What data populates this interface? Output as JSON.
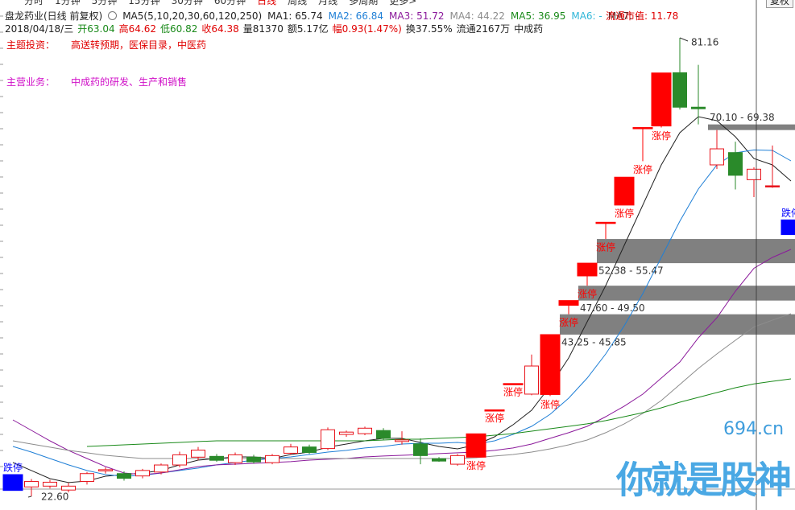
{
  "toolbar": {
    "tabs": [
      "分时",
      "1分钟",
      "5分钟",
      "15分钟",
      "30分钟",
      "60分钟",
      "日线",
      "周线",
      "月线",
      "多周期",
      "更多>"
    ],
    "active": "日线",
    "right": "复权"
  },
  "header": {
    "title": "盘龙药业(日线 前复权)",
    "ma_params": "MA5(5,10,20,30,60,120,250)",
    "ma_extra": [
      {
        "name": "MA6:",
        "value": "-",
        "color": "#2fb6d8"
      },
      {
        "name": "MA7:",
        "value": "-",
        "color": "#333333"
      }
    ],
    "market_cap": "流通市值: 11.78",
    "date": "2018/04/18/三",
    "ohlc_labels": [
      {
        "text": "开",
        "color": "#1a8a1a"
      },
      {
        "text": "高",
        "color": "#e00000"
      },
      {
        "text": "低",
        "color": "#1a8a1a"
      },
      {
        "text": "收",
        "color": "#e00000"
      }
    ],
    "extras": [
      {
        "text": "量81370",
        "color": "#222222"
      },
      {
        "text": "额5.17亿",
        "color": "#222222"
      },
      {
        "text": "幅0.93(1.47%)",
        "color": "#e00000"
      },
      {
        "text": "换37.55%",
        "color": "#222222"
      },
      {
        "text": "流通2167万",
        "color": "#222222"
      },
      {
        "text": "中成药",
        "color": "#222222"
      }
    ],
    "theme_label": "主题投资：",
    "theme": "高送转预期，医保目录，中医药",
    "business_label": "主营业务：",
    "business": "中成药的研发、生产和销售"
  },
  "chart_data": {
    "type": "candlestick",
    "open": [
      25.37,
      23.8,
      23.9,
      23.4,
      24.5,
      25.9,
      25.5,
      25.2,
      25.7,
      26.6,
      27.6,
      27.7,
      26.9,
      27.6,
      26.9,
      28.1,
      28.9,
      28.7,
      30.5,
      30.6,
      31.0,
      29.6,
      29.3,
      27.4,
      26.7,
      27.6,
      33.64,
      37.0,
      35.65,
      35.6,
      47.0,
      50.75,
      57.6,
      59.8,
      69.7,
      69.9,
      76.7,
      72.3,
      64.93,
      66.5,
      63.04,
      62.26,
      57.9
    ],
    "high": [
      25.37,
      24.8,
      24.7,
      24.3,
      25.7,
      26.3,
      25.8,
      26.1,
      26.8,
      28.3,
      28.9,
      28.0,
      28.2,
      27.9,
      28.0,
      29.3,
      29.2,
      31.4,
      31.0,
      31.5,
      31.3,
      30.9,
      30.0,
      27.6,
      28.0,
      30.58,
      33.64,
      37.0,
      40.7,
      43.25,
      47.6,
      52.38,
      57.6,
      63.36,
      69.7,
      76.67,
      81.16,
      77.7,
      69.38,
      67.9,
      64.62,
      67.4,
      57.9
    ],
    "low": [
      23.35,
      22.6,
      23.6,
      23.1,
      24.1,
      25.5,
      24.6,
      24.9,
      25.4,
      26.3,
      27.2,
      27.0,
      26.6,
      26.8,
      26.7,
      27.9,
      28.0,
      28.5,
      30.2,
      30.4,
      29.8,
      29.2,
      26.7,
      27.0,
      26.5,
      27.6,
      33.64,
      37.0,
      35.5,
      35.4,
      45.85,
      49.5,
      55.47,
      59.8,
      65.4,
      69.7,
      72.0,
      70.1,
      64.4,
      61.8,
      60.82,
      62.0,
      56.03
    ],
    "close": [
      23.35,
      24.5,
      24.4,
      23.9,
      25.5,
      26.0,
      24.9,
      25.9,
      26.6,
      27.9,
      28.5,
      27.2,
      27.9,
      27.0,
      27.8,
      28.9,
      28.2,
      31.1,
      30.8,
      31.3,
      30.0,
      29.8,
      27.8,
      27.1,
      27.8,
      30.58,
      33.64,
      37.0,
      39.24,
      43.25,
      47.6,
      52.38,
      57.6,
      63.36,
      69.7,
      76.67,
      72.3,
      72.1,
      66.98,
      63.6,
      64.38,
      62.26,
      56.03
    ],
    "annotations": [
      {
        "text": "跌停",
        "fill": "#0000ff"
      },
      null,
      null,
      null,
      null,
      null,
      null,
      null,
      null,
      null,
      null,
      null,
      null,
      null,
      null,
      null,
      null,
      null,
      null,
      null,
      null,
      null,
      null,
      null,
      null,
      {
        "text": "涨停",
        "fill": "#ff0000"
      },
      {
        "text": "涨停",
        "fill": "#ff0000"
      },
      {
        "text": "涨停",
        "fill": "#ff0000"
      },
      null,
      {
        "text": "涨停",
        "fill": "#ff0000"
      },
      {
        "text": "涨停",
        "fill": "#ff0000"
      },
      {
        "text": "涨停",
        "fill": "#ff0000"
      },
      {
        "text": "涨停",
        "fill": "#ff0000"
      },
      {
        "text": "涨停",
        "fill": "#ff0000"
      },
      {
        "text": "涨停",
        "fill": "#ff0000"
      },
      {
        "text": "涨停",
        "fill": "#ff0000"
      },
      null,
      null,
      null,
      null,
      null,
      null,
      {
        "text": "跌停",
        "fill": "#0000ff"
      }
    ],
    "up_color": "#e8141c",
    "down_color": "#2a8a2a",
    "series": [
      {
        "name": "MA1:",
        "color": "#222222",
        "values": [
          26.91,
          25.89,
          24.86,
          24.35,
          24.55,
          25.17,
          25.37,
          25.58,
          25.89,
          26.61,
          27.22,
          27.43,
          27.63,
          27.63,
          27.43,
          27.94,
          28.25,
          28.87,
          29.28,
          29.69,
          30.0,
          30.0,
          29.48,
          28.97,
          28.66,
          29.17,
          30.2,
          31.74,
          33.59,
          36.67,
          40.27,
          44.89,
          49.52,
          54.65,
          59.79,
          64.93,
          69.04,
          71.09,
          70.58,
          68.52,
          65.74,
          64.93,
          62.87
        ]
      },
      {
        "name": "MA2:",
        "color": "#1f7fd6",
        "values": [
          28.97,
          28.25,
          27.43,
          26.61,
          25.89,
          25.37,
          25.17,
          25.27,
          25.58,
          25.89,
          26.2,
          26.61,
          26.91,
          27.22,
          27.43,
          27.63,
          27.94,
          28.25,
          28.46,
          28.77,
          28.97,
          29.28,
          29.38,
          29.38,
          29.48,
          29.28,
          29.69,
          30.51,
          31.54,
          33.08,
          35.13,
          37.7,
          40.78,
          44.38,
          48.49,
          53.11,
          57.74,
          61.85,
          64.93,
          66.47,
          66.84,
          66.78,
          65.44
        ]
      },
      {
        "name": "MA3:",
        "color": "#8b1a9b",
        "values": [
          32.36,
          31.02,
          29.69,
          28.46,
          27.43,
          26.4,
          25.58,
          25.37,
          25.58,
          25.99,
          26.4,
          26.61,
          26.71,
          26.81,
          26.91,
          27.02,
          27.22,
          27.33,
          27.43,
          27.63,
          27.74,
          27.84,
          27.94,
          28.05,
          28.15,
          28.25,
          28.46,
          28.77,
          29.28,
          30.0,
          30.72,
          31.54,
          32.77,
          34.11,
          35.65,
          37.7,
          39.76,
          42.84,
          45.41,
          48.8,
          51.72,
          53.11,
          54.14
        ]
      },
      {
        "name": "MA4:",
        "color": "#8c8c8c",
        "values": [
          29.69,
          29.28,
          28.87,
          28.46,
          28.15,
          27.84,
          27.63,
          27.43,
          27.43,
          27.43,
          27.43,
          27.43,
          27.43,
          27.43,
          27.43,
          27.43,
          27.43,
          27.43,
          27.43,
          27.43,
          27.43,
          27.43,
          27.43,
          27.43,
          27.43,
          27.53,
          27.74,
          27.94,
          28.25,
          28.66,
          29.17,
          29.79,
          30.72,
          31.85,
          33.18,
          34.83,
          36.88,
          38.93,
          40.78,
          42.53,
          44.22,
          45.1,
          45.92
        ]
      },
      {
        "name": "MA5:",
        "color": "#1a8a1a",
        "values": [
          null,
          null,
          null,
          null,
          28.97,
          29.07,
          29.17,
          29.28,
          29.38,
          29.48,
          29.59,
          29.69,
          29.69,
          29.69,
          29.69,
          29.69,
          29.69,
          29.69,
          29.69,
          29.69,
          29.79,
          29.89,
          29.89,
          30.0,
          30.1,
          30.2,
          30.41,
          30.61,
          30.92,
          31.23,
          31.54,
          31.85,
          32.26,
          32.77,
          33.28,
          33.9,
          34.62,
          35.23,
          35.85,
          36.47,
          36.95,
          37.29,
          37.6
        ]
      }
    ],
    "gaps": [
      {
        "low": 52.38,
        "high": 55.47,
        "label": "52.38 - 55.47"
      },
      {
        "low": 47.6,
        "high": 49.5,
        "label": "47.60 - 49.50"
      },
      {
        "low": 43.25,
        "high": 45.85,
        "label": "43.25 - 45.85"
      },
      {
        "low": 69.38,
        "high": 70.1,
        "label": "70.10 - 69.38"
      }
    ],
    "gap_color": "#808080",
    "high_mark": 81.16,
    "low_mark": {
      "value": 22.6,
      "label": "22.60"
    },
    "ylim": [
      20.85,
      85.99
    ]
  },
  "watermark": {
    "site": "694.cn",
    "slogan": "你就是股神"
  }
}
